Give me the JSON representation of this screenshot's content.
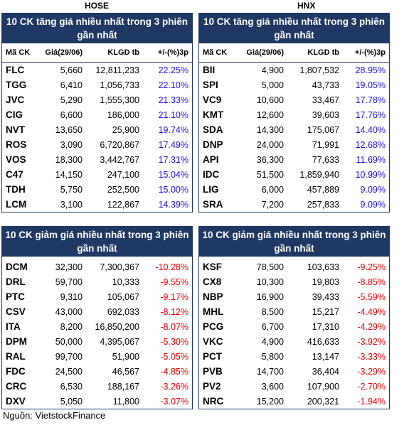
{
  "exchanges": {
    "left": "HOSE",
    "right": "HNX"
  },
  "headers": [
    "Mã CK",
    "Giá(29/06)",
    "KLGD tb",
    "+/-(%)3p"
  ],
  "hose_up": {
    "title": "10 CK tăng giá nhiều nhất trong 3 phiên gần nhất",
    "rows": [
      [
        "FLC",
        "5,660",
        "12,811,233",
        "22.25%"
      ],
      [
        "TGG",
        "6,410",
        "1,056,733",
        "22.10%"
      ],
      [
        "JVC",
        "5,290",
        "1,555,300",
        "21.33%"
      ],
      [
        "CIG",
        "6,600",
        "186,000",
        "21.10%"
      ],
      [
        "NVT",
        "13,650",
        "25,900",
        "19.74%"
      ],
      [
        "ROS",
        "3,090",
        "6,720,867",
        "17.49%"
      ],
      [
        "VOS",
        "18,300",
        "3,442,767",
        "17.31%"
      ],
      [
        "C47",
        "14,150",
        "247,100",
        "15.04%"
      ],
      [
        "TDH",
        "5,750",
        "252,500",
        "15.00%"
      ],
      [
        "LCM",
        "3,100",
        "122,867",
        "14.39%"
      ]
    ]
  },
  "hnx_up": {
    "title": "10 CK tăng giá nhiều nhất trong 3 phiên gần nhất",
    "rows": [
      [
        "BII",
        "4,900",
        "1,807,532",
        "28.95%"
      ],
      [
        "SPI",
        "5,000",
        "43,733",
        "19.05%"
      ],
      [
        "VC9",
        "10,600",
        "33,467",
        "17.78%"
      ],
      [
        "KMT",
        "12,600",
        "39,603",
        "17.76%"
      ],
      [
        "SDA",
        "14,300",
        "175,067",
        "14.40%"
      ],
      [
        "DNP",
        "24,000",
        "71,991",
        "12.68%"
      ],
      [
        "API",
        "36,300",
        "77,633",
        "11.69%"
      ],
      [
        "IDC",
        "51,500",
        "1,859,940",
        "10.99%"
      ],
      [
        "LIG",
        "6,000",
        "457,889",
        "9.09%"
      ],
      [
        "SRA",
        "7,200",
        "257,833",
        "9.09%"
      ]
    ]
  },
  "hose_down": {
    "title": "10 CK giảm giá nhiều nhất trong 3 phiên gần nhất",
    "rows": [
      [
        "DCM",
        "32,300",
        "7,300,367",
        "-10.28%"
      ],
      [
        "DRL",
        "59,700",
        "10,333",
        "-9.55%"
      ],
      [
        "PTC",
        "9,310",
        "105,067",
        "-9.17%"
      ],
      [
        "CSV",
        "43,000",
        "692,033",
        "-8.12%"
      ],
      [
        "ITA",
        "8,200",
        "16,850,200",
        "-8.07%"
      ],
      [
        "DPM",
        "50,000",
        "4,395,067",
        "-5.30%"
      ],
      [
        "RAL",
        "99,700",
        "51,900",
        "-5.05%"
      ],
      [
        "FDC",
        "24,500",
        "46,567",
        "-4.85%"
      ],
      [
        "CRC",
        "6,530",
        "188,167",
        "-3.26%"
      ],
      [
        "DXV",
        "5,050",
        "11,800",
        "-3.07%"
      ]
    ]
  },
  "hnx_down": {
    "title": "10 CK giảm giá nhiều nhất trong 3 phiên gần nhất",
    "rows": [
      [
        "KSF",
        "78,500",
        "103,633",
        "-9.25%"
      ],
      [
        "CX8",
        "10,300",
        "19,803",
        "-8.85%"
      ],
      [
        "NBP",
        "16,900",
        "39,433",
        "-5.59%"
      ],
      [
        "MHL",
        "8,500",
        "15,217",
        "-4.49%"
      ],
      [
        "PCG",
        "6,700",
        "17,310",
        "-4.29%"
      ],
      [
        "VKC",
        "4,900",
        "416,633",
        "-3.92%"
      ],
      [
        "PCT",
        "5,800",
        "13,147",
        "-3.33%"
      ],
      [
        "PVB",
        "14,700",
        "36,404",
        "-3.29%"
      ],
      [
        "PV2",
        "3,600",
        "107,900",
        "-2.70%"
      ],
      [
        "NRC",
        "15,200",
        "200,321",
        "-1.94%"
      ]
    ]
  },
  "source": "Nguồn: VietstockFinance",
  "colors": {
    "header_bg": "#1f3864",
    "up": "#1a10e6",
    "down": "#e60000"
  }
}
